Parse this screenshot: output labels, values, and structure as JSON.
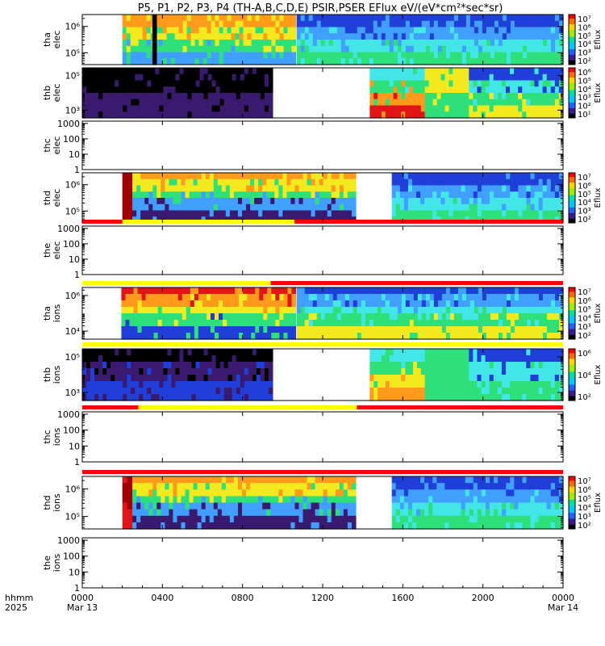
{
  "title": "P5, P1, P2, P3, P4 (TH-A,B,C,D,E) PSIR,PSER EFlux eV/(eV*cm²*sec*sr)",
  "colorbar_label": "Eflux",
  "x_axis": {
    "corner_label_line1": "hhmm",
    "corner_label_line2": "2025",
    "ticks": [
      {
        "hour": 0,
        "label": "0000",
        "date": "Mar 13"
      },
      {
        "hour": 4,
        "label": "0400",
        "date": ""
      },
      {
        "hour": 8,
        "label": "0800",
        "date": ""
      },
      {
        "hour": 12,
        "label": "1200",
        "date": ""
      },
      {
        "hour": 16,
        "label": "1600",
        "date": ""
      },
      {
        "hour": 20,
        "label": "2000",
        "date": ""
      },
      {
        "hour": 24,
        "label": "0000",
        "date": "Mar 14"
      }
    ]
  },
  "palette": {
    "black": "#000000",
    "purple": "#3a1a6e",
    "blue": "#1f3fd8",
    "lightblue": "#41a0ff",
    "cyan": "#43e6e6",
    "green": "#2ee07a",
    "yellow": "#f2ea1f",
    "orange": "#ff9a1a",
    "red": "#e01515",
    "darkred": "#a00000",
    "flag_red": "#ff0000",
    "flag_yellow": "#ffff00"
  },
  "chart_data": [
    {
      "type": "heatmap",
      "probe": "tha",
      "species": "elec",
      "ylabel": [
        "tha",
        "elec"
      ],
      "ylog": true,
      "yticks": [
        {
          "val": 100000,
          "label": "10⁵"
        },
        {
          "val": 1000000,
          "label": "10⁶"
        }
      ],
      "colorbar": [
        "10⁷",
        "10⁶",
        "10⁵",
        "10⁴",
        "10³",
        "10²"
      ],
      "flags": [],
      "data_segments": [
        [
          2.0,
          10.65
        ],
        [
          10.7,
          24
        ]
      ],
      "regions": [
        {
          "t": [
            2.0,
            10.65
          ],
          "desc": "magnetosphere: orange/yellow core with cyan-blue upper band",
          "colors": [
            "orange",
            "yellow",
            "green",
            "lightblue"
          ]
        },
        {
          "t": [
            3.5,
            3.7
          ],
          "desc": "vertical black dropout",
          "colors": [
            "black"
          ]
        },
        {
          "t": [
            10.7,
            24
          ],
          "desc": "magnetosheath: blue-cyan upper, green-yellow lower",
          "colors": [
            "blue",
            "lightblue",
            "cyan",
            "green"
          ]
        }
      ]
    },
    {
      "type": "heatmap",
      "probe": "thb",
      "species": "elec",
      "ylabel": [
        "thb",
        "elec"
      ],
      "ylog": true,
      "yticks": [
        {
          "val": 1000,
          "label": "10³"
        },
        {
          "val": 100000,
          "label": "10⁵"
        }
      ],
      "colorbar": [
        "10⁶",
        "10⁵",
        "10⁴",
        "10³",
        "10²",
        "10¹"
      ],
      "flags": [],
      "data_segments": [
        [
          0,
          9.5
        ],
        [
          14.35,
          24
        ]
      ],
      "regions": [
        {
          "t": [
            0,
            9.5
          ],
          "desc": "sparse purple/black noise",
          "colors": [
            "black",
            "purple"
          ]
        },
        {
          "t": [
            14.35,
            17.1
          ],
          "desc": "cyan-green with red spikes",
          "colors": [
            "cyan",
            "green",
            "orange",
            "red"
          ]
        },
        {
          "t": [
            17.1,
            19.3
          ],
          "desc": "bright yellow/green block",
          "colors": [
            "yellow",
            "green"
          ]
        },
        {
          "t": [
            19.3,
            24
          ],
          "desc": "blue-cyan with green lower band",
          "colors": [
            "blue",
            "cyan",
            "green",
            "yellow"
          ]
        }
      ]
    },
    {
      "type": "empty",
      "probe": "thc",
      "species": "elec",
      "ylabel": [
        "thc",
        "elec"
      ],
      "ylog": true,
      "yticks": [
        {
          "val": 1,
          "label": "1"
        },
        {
          "val": 10,
          "label": "10"
        },
        {
          "val": 100,
          "label": "100"
        },
        {
          "val": 1000,
          "label": "1000"
        }
      ],
      "colorbar": [],
      "flags": []
    },
    {
      "type": "heatmap",
      "probe": "thd",
      "species": "elec",
      "ylabel": [
        "thd",
        "elec"
      ],
      "ylog": true,
      "yticks": [
        {
          "val": 100000,
          "label": "10⁵"
        },
        {
          "val": 1000000,
          "label": "10⁶"
        }
      ],
      "colorbar": [
        "10⁷",
        "10⁶",
        "10⁵",
        "10⁴",
        "10³",
        "10²"
      ],
      "flags": [],
      "data_segments": [
        [
          2.0,
          13.65
        ],
        [
          15.45,
          24
        ]
      ],
      "regions": [
        {
          "t": [
            2.0,
            2.5
          ],
          "desc": "dark red edge",
          "colors": [
            "darkred"
          ]
        },
        {
          "t": [
            2.5,
            13.65
          ],
          "desc": "orange core fading to cyan, purple noise later",
          "colors": [
            "orange",
            "yellow",
            "green",
            "lightblue",
            "purple"
          ]
        },
        {
          "t": [
            15.45,
            24
          ],
          "desc": "blue-cyan with green lower band",
          "colors": [
            "blue",
            "lightblue",
            "cyan",
            "green"
          ]
        }
      ]
    },
    {
      "type": "empty",
      "probe": "the",
      "species": "elec",
      "ylabel": [
        "the",
        "elec"
      ],
      "ylog": true,
      "yticks": [
        {
          "val": 1,
          "label": "1"
        },
        {
          "val": 10,
          "label": "10"
        },
        {
          "val": 100,
          "label": "100"
        },
        {
          "val": 1000,
          "label": "1000"
        }
      ],
      "colorbar": [],
      "flags": [
        {
          "t": [
            0,
            2.0
          ],
          "color": "flag_red"
        },
        {
          "t": [
            2.0,
            10.6
          ],
          "color": "flag_yellow"
        },
        {
          "t": [
            10.6,
            24
          ],
          "color": "flag_red"
        }
      ]
    },
    {
      "type": "heatmap",
      "probe": "tha",
      "species": "ions",
      "ylabel": [
        "tha",
        "ions"
      ],
      "ylog": true,
      "yticks": [
        {
          "val": 10000,
          "label": "10⁴"
        },
        {
          "val": 1000000,
          "label": "10⁶"
        }
      ],
      "colorbar": [
        "10⁷",
        "10⁶",
        "10⁵",
        "10⁴",
        "10³",
        "10²"
      ],
      "flags": [
        {
          "t": [
            0,
            9.4
          ],
          "color": "flag_yellow"
        },
        {
          "t": [
            9.4,
            24
          ],
          "color": "flag_red"
        }
      ],
      "data_segments": [
        [
          1.95,
          10.65
        ],
        [
          10.7,
          24
        ]
      ],
      "regions": [
        {
          "t": [
            1.95,
            10.65
          ],
          "desc": "red/orange core with green-blue surround",
          "colors": [
            "red",
            "orange",
            "yellow",
            "green",
            "blue"
          ]
        },
        {
          "t": [
            10.7,
            24
          ],
          "desc": "blue-cyan with green lower band",
          "colors": [
            "blue",
            "lightblue",
            "cyan",
            "green",
            "yellow"
          ]
        }
      ]
    },
    {
      "type": "heatmap",
      "probe": "thb",
      "species": "ions",
      "ylabel": [
        "thb",
        "ions"
      ],
      "ylog": true,
      "yticks": [
        {
          "val": 1000,
          "label": "10³"
        },
        {
          "val": 100000,
          "label": "10⁵"
        }
      ],
      "colorbar": [
        "10⁶",
        "10⁴",
        "10²"
      ],
      "flags": [
        {
          "t": [
            0,
            24
          ],
          "color": "flag_yellow"
        }
      ],
      "data_segments": [
        [
          0,
          9.5
        ],
        [
          14.35,
          24
        ]
      ],
      "regions": [
        {
          "t": [
            0,
            9.5
          ],
          "desc": "sparse purple/black noise",
          "colors": [
            "black",
            "purple",
            "blue"
          ]
        },
        {
          "t": [
            14.35,
            17.1
          ],
          "desc": "cyan-green with yellow lower band",
          "colors": [
            "cyan",
            "green",
            "yellow",
            "orange"
          ]
        },
        {
          "t": [
            17.1,
            19.3
          ],
          "desc": "green block",
          "colors": [
            "green"
          ]
        },
        {
          "t": [
            19.3,
            24
          ],
          "desc": "blue-cyan with green lower band",
          "colors": [
            "blue",
            "cyan",
            "green"
          ]
        }
      ]
    },
    {
      "type": "empty",
      "probe": "thc",
      "species": "ions",
      "ylabel": [
        "thc",
        "ions"
      ],
      "ylog": true,
      "yticks": [
        {
          "val": 1,
          "label": "1"
        },
        {
          "val": 10,
          "label": "10"
        },
        {
          "val": 100,
          "label": "100"
        },
        {
          "val": 1000,
          "label": "1000"
        }
      ],
      "colorbar": [],
      "flags": [
        {
          "t": [
            0,
            2.8
          ],
          "color": "flag_red"
        },
        {
          "t": [
            2.8,
            13.7
          ],
          "color": "flag_yellow"
        },
        {
          "t": [
            13.7,
            24
          ],
          "color": "flag_red"
        }
      ]
    },
    {
      "type": "heatmap",
      "probe": "thd",
      "species": "ions",
      "ylabel": [
        "thd",
        "ions"
      ],
      "ylog": true,
      "yticks": [
        {
          "val": 100000,
          "label": "10⁵"
        },
        {
          "val": 1000000,
          "label": "10⁶"
        }
      ],
      "colorbar": [
        "10⁷",
        "10⁶",
        "10⁵",
        "10⁴",
        "10³",
        "10²"
      ],
      "flags": [
        {
          "t": [
            0,
            24
          ],
          "color": "flag_red"
        }
      ],
      "data_segments": [
        [
          2.0,
          13.65
        ],
        [
          15.45,
          24
        ]
      ],
      "regions": [
        {
          "t": [
            2.0,
            2.5
          ],
          "desc": "dark red edge",
          "colors": [
            "darkred",
            "red"
          ]
        },
        {
          "t": [
            2.5,
            13.65
          ],
          "desc": "orange core fading to cyan, purple noise later",
          "colors": [
            "orange",
            "yellow",
            "green",
            "lightblue",
            "purple"
          ]
        },
        {
          "t": [
            15.45,
            24
          ],
          "desc": "blue-cyan with green lower band",
          "colors": [
            "blue",
            "lightblue",
            "cyan",
            "green"
          ]
        }
      ]
    },
    {
      "type": "empty",
      "probe": "the",
      "species": "ions",
      "ylabel": [
        "the",
        "ions"
      ],
      "ylog": true,
      "yticks": [
        {
          "val": 1,
          "label": "1"
        },
        {
          "val": 10,
          "label": "10"
        },
        {
          "val": 100,
          "label": "100"
        },
        {
          "val": 1000,
          "label": "1000"
        }
      ],
      "colorbar": [],
      "flags": []
    }
  ]
}
